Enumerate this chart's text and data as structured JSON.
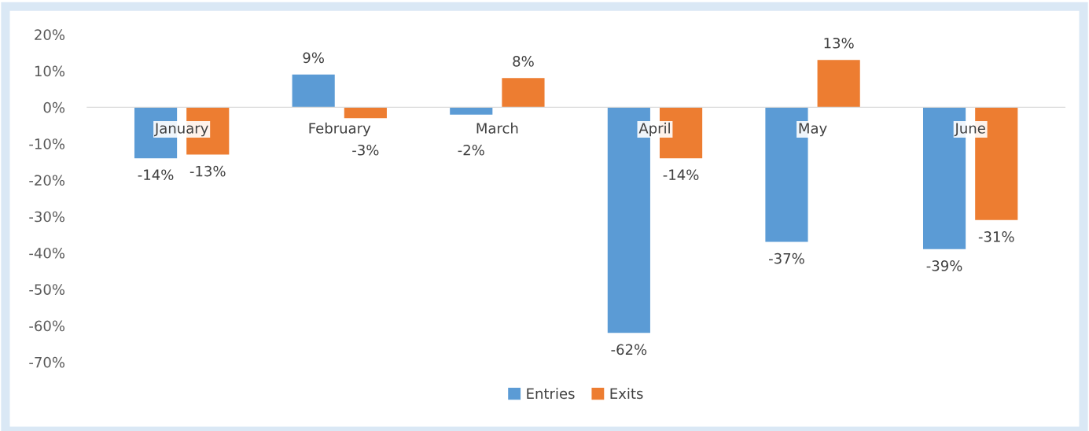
{
  "chart_data": {
    "type": "bar",
    "categories": [
      "January",
      "February",
      "March",
      "April",
      "May",
      "June"
    ],
    "series": [
      {
        "name": "Entries",
        "color": "#5b9bd5",
        "values": [
          -14,
          9,
          -2,
          -62,
          -37,
          -39
        ],
        "value_labels": [
          "-14%",
          "9%",
          "-2%",
          "-62%",
          "-37%",
          "-39%"
        ]
      },
      {
        "name": "Exits",
        "color": "#ed7d31",
        "values": [
          -13,
          -3,
          8,
          -14,
          13,
          -31
        ],
        "value_labels": [
          "-13%",
          "-3%",
          "8%",
          "-14%",
          "13%",
          "-31%"
        ]
      }
    ],
    "ylim": [
      -70,
      20
    ],
    "yticks": [
      {
        "value": -70,
        "label": "-70%"
      },
      {
        "value": -60,
        "label": "-60%"
      },
      {
        "value": -50,
        "label": "-50%"
      },
      {
        "value": -40,
        "label": "-40%"
      },
      {
        "value": -30,
        "label": "-30%"
      },
      {
        "value": -20,
        "label": "-20%"
      },
      {
        "value": -10,
        "label": "-10%"
      },
      {
        "value": 0,
        "label": "0%"
      },
      {
        "value": 10,
        "label": "10%"
      },
      {
        "value": 20,
        "label": "20%"
      }
    ],
    "grid": false,
    "legend": "bottom"
  }
}
